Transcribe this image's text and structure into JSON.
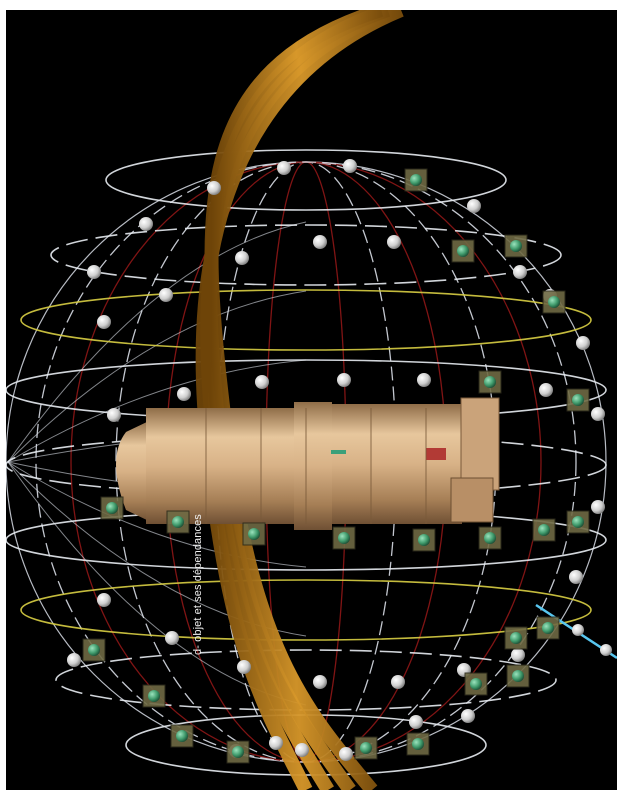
{
  "viewer": {
    "caption": "d- objet et ses dépendances",
    "background_color": "#000000",
    "frame_color": "#ffffff"
  },
  "scene": {
    "object": "cylinder-reactor",
    "colors": {
      "meridian_white": "#d8dde6",
      "meridian_red": "#8e1616",
      "latitude_white": "#e8ecf2",
      "latitude_yellow": "#d9cf44",
      "band_gold": "#c98a1e",
      "axis_cyan": "#58c6ef",
      "sphere_white": "#e6e6e6",
      "marker_green": "#3f9a6b"
    }
  }
}
